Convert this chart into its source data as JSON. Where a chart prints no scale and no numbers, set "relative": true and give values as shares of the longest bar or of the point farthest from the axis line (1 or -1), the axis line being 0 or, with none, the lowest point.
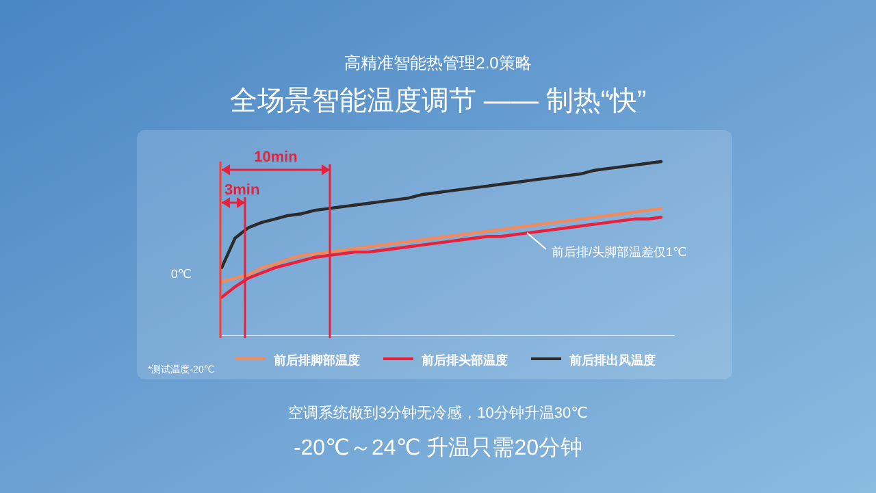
{
  "chart_data": {
    "type": "line",
    "title": "全场景智能温度调节 —— 制热“快”",
    "subtitle": "高精准智能热管理2.0策略",
    "categories": [
      null,
      null,
      null,
      null,
      null,
      null,
      null,
      null,
      null,
      null,
      null,
      null,
      null,
      null,
      null,
      null,
      null,
      null,
      null,
      null,
      null,
      null,
      null,
      null,
      null,
      null,
      null,
      null,
      null,
      null,
      null,
      null,
      null,
      null
    ],
    "relative": true,
    "legend": "bottom",
    "marker": "none",
    "line_style": "solid",
    "series": [
      {
        "name": "前后排脚部温度",
        "color": "#f28a5c",
        "values": [
          0.31,
          0.33,
          0.35,
          0.39,
          0.41,
          0.44,
          0.46,
          0.47,
          0.48,
          0.49,
          0.5,
          0.51,
          0.52,
          0.53,
          0.54,
          0.55,
          0.56,
          0.57,
          0.58,
          0.59,
          0.6,
          0.61,
          0.62,
          0.63,
          0.64,
          0.65,
          0.66,
          0.67,
          0.68,
          0.69,
          0.7,
          0.71,
          0.72,
          0.73
        ]
      },
      {
        "name": "前后排头部温度",
        "color": "#e8203a",
        "values": [
          0.22,
          0.28,
          0.33,
          0.36,
          0.39,
          0.41,
          0.43,
          0.45,
          0.46,
          0.47,
          0.48,
          0.48,
          0.49,
          0.5,
          0.51,
          0.52,
          0.53,
          0.54,
          0.55,
          0.56,
          0.57,
          0.57,
          0.58,
          0.59,
          0.6,
          0.61,
          0.62,
          0.63,
          0.64,
          0.65,
          0.66,
          0.67,
          0.67,
          0.68
        ]
      },
      {
        "name": "前后排出风温度",
        "color": "#2b2b2b",
        "values": [
          0.39,
          0.56,
          0.62,
          0.65,
          0.67,
          0.69,
          0.7,
          0.72,
          0.73,
          0.74,
          0.75,
          0.76,
          0.77,
          0.78,
          0.79,
          0.81,
          0.82,
          0.83,
          0.84,
          0.85,
          0.86,
          0.87,
          0.88,
          0.89,
          0.9,
          0.91,
          0.92,
          0.93,
          0.95,
          0.96,
          0.97,
          0.98,
          0.99,
          1.0
        ]
      }
    ],
    "annotations": [
      "3min",
      "10min",
      "0℃",
      "*测试温度-20℃",
      "前后排/头脚部温差仅1℃",
      "空调系统做到3分钟无冷感，10分钟升温30℃",
      "-20℃～24℃  升温只需20分钟"
    ]
  }
}
